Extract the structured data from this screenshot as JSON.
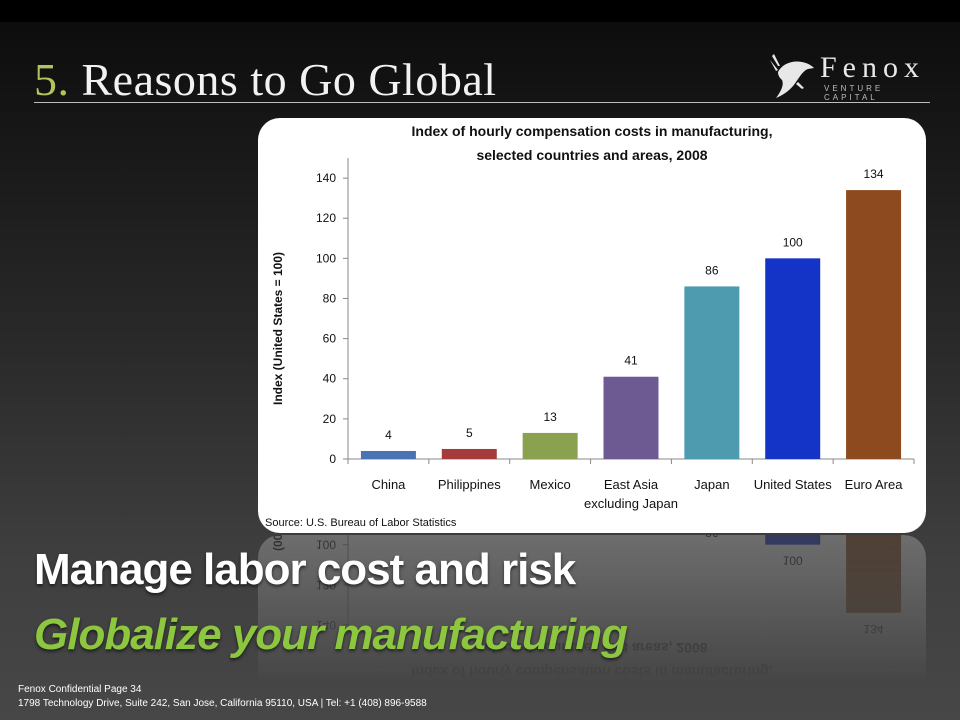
{
  "slide": {
    "section_number": "5.",
    "title": "Reasons to Go Global",
    "headline": "Manage labor cost and risk",
    "subheadline": "Globalize your manufacturing",
    "footer_line1": "Fenox Confidential Page 34",
    "footer_line2": "1798 Technology Drive, Suite 242, San Jose, California 95110, USA | Tel: +1 (408) 896-9588"
  },
  "logo": {
    "name": "Fenox",
    "tagline": "VENTURE CAPITAL",
    "icon": "bird-logo-icon"
  },
  "colors": {
    "accent_green": "#8dc63f",
    "title_number": "#b5c45a"
  },
  "chart_data": {
    "type": "bar",
    "title_line1": "Index of hourly compensation costs in manufacturing,",
    "title_line2": "selected countries and areas, 2008",
    "ylabel": "Index (United States = 100)",
    "xlabel": "",
    "ylim": [
      0,
      150
    ],
    "yticks": [
      0,
      20,
      40,
      60,
      80,
      100,
      120,
      140
    ],
    "grid": false,
    "categories": [
      [
        "China"
      ],
      [
        "Philippines"
      ],
      [
        "Mexico"
      ],
      [
        "East Asia",
        "excluding Japan"
      ],
      [
        "Japan"
      ],
      [
        "United States"
      ],
      [
        "Euro Area"
      ]
    ],
    "values": [
      4,
      5,
      13,
      41,
      86,
      100,
      134
    ],
    "bar_colors": [
      "#4a73b5",
      "#a53c3c",
      "#8aa14f",
      "#6e5a93",
      "#4e9aaf",
      "#1434c8",
      "#8c4a1e"
    ],
    "source": "Source: U.S. Bureau of Labor Statistics"
  }
}
